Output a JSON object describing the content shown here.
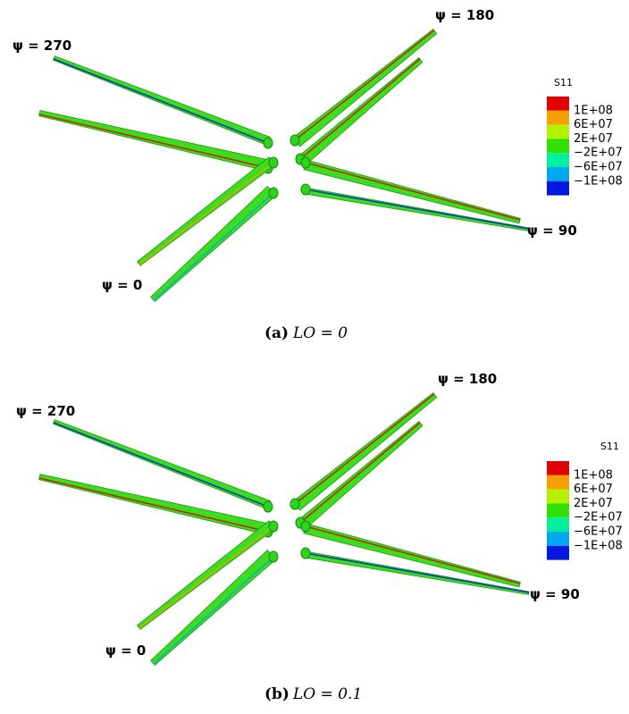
{
  "panels": [
    {
      "psi_labels": [
        "ψ = 180",
        "ψ = 270",
        "ψ = 90",
        "ψ = 0"
      ],
      "legend": {
        "title": "S11",
        "labels": [
          "1E+08",
          "6E+07",
          "2E+07",
          "−2E+07",
          "−6E+07",
          "−1E+08"
        ],
        "colors": [
          "#e00000",
          "#f5a000",
          "#b4f000",
          "#30e000",
          "#00f0a0",
          "#00a8f0",
          "#0018e0"
        ]
      },
      "caption": {
        "tag": "(a)",
        "text": "LO = 0"
      }
    },
    {
      "psi_labels": [
        "ψ = 180",
        "ψ = 270",
        "ψ = 90",
        "ψ = 0"
      ],
      "legend": {
        "title": "S11",
        "labels": [
          "1E+08",
          "6E+07",
          "2E+07",
          "−2E+07",
          "−6E+07",
          "−1E+08"
        ],
        "colors": [
          "#e00000",
          "#f5a000",
          "#b4f000",
          "#30e000",
          "#00f0a0",
          "#00a8f0",
          "#0018e0"
        ]
      },
      "caption": {
        "tag": "(b)",
        "text": "LO = 0.1"
      }
    }
  ]
}
